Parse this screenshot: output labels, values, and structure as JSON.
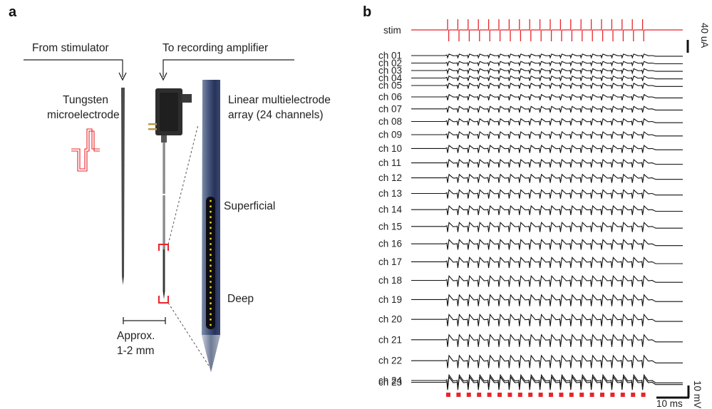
{
  "panel_a": {
    "letter": "a",
    "from_stimulator": "From stimulator",
    "to_recording": "To recording amplifier",
    "tungsten_line1": "Tungsten",
    "tungsten_line2": "microelectrode",
    "array_line1": "Linear multielectrode",
    "array_line2": "array (24 channels)",
    "superficial": "Superficial",
    "deep": "Deep",
    "approx_line1": "Approx.",
    "approx_line2": "1-2 mm",
    "contact_count": 24
  },
  "panel_b": {
    "letter": "b",
    "stim_label": "stim",
    "channel_labels": [
      "ch 01",
      "ch 02",
      "ch 03",
      "ch 04",
      "ch 05",
      "ch 06",
      "ch 07",
      "ch 08",
      "ch 09",
      "ch 10",
      "ch 11",
      "ch 12",
      "ch 13",
      "ch 14",
      "ch 15",
      "ch 16",
      "ch 17",
      "ch 18",
      "ch 19",
      "ch 20",
      "ch 21",
      "ch 22",
      "ch 23",
      "ch 24"
    ],
    "pulse_count": 20,
    "current_scale": "40 uA",
    "voltage_scale": "10 mV",
    "time_scale": "10 ms",
    "stim_color": "#e8252a",
    "trace_color": "#111111"
  }
}
